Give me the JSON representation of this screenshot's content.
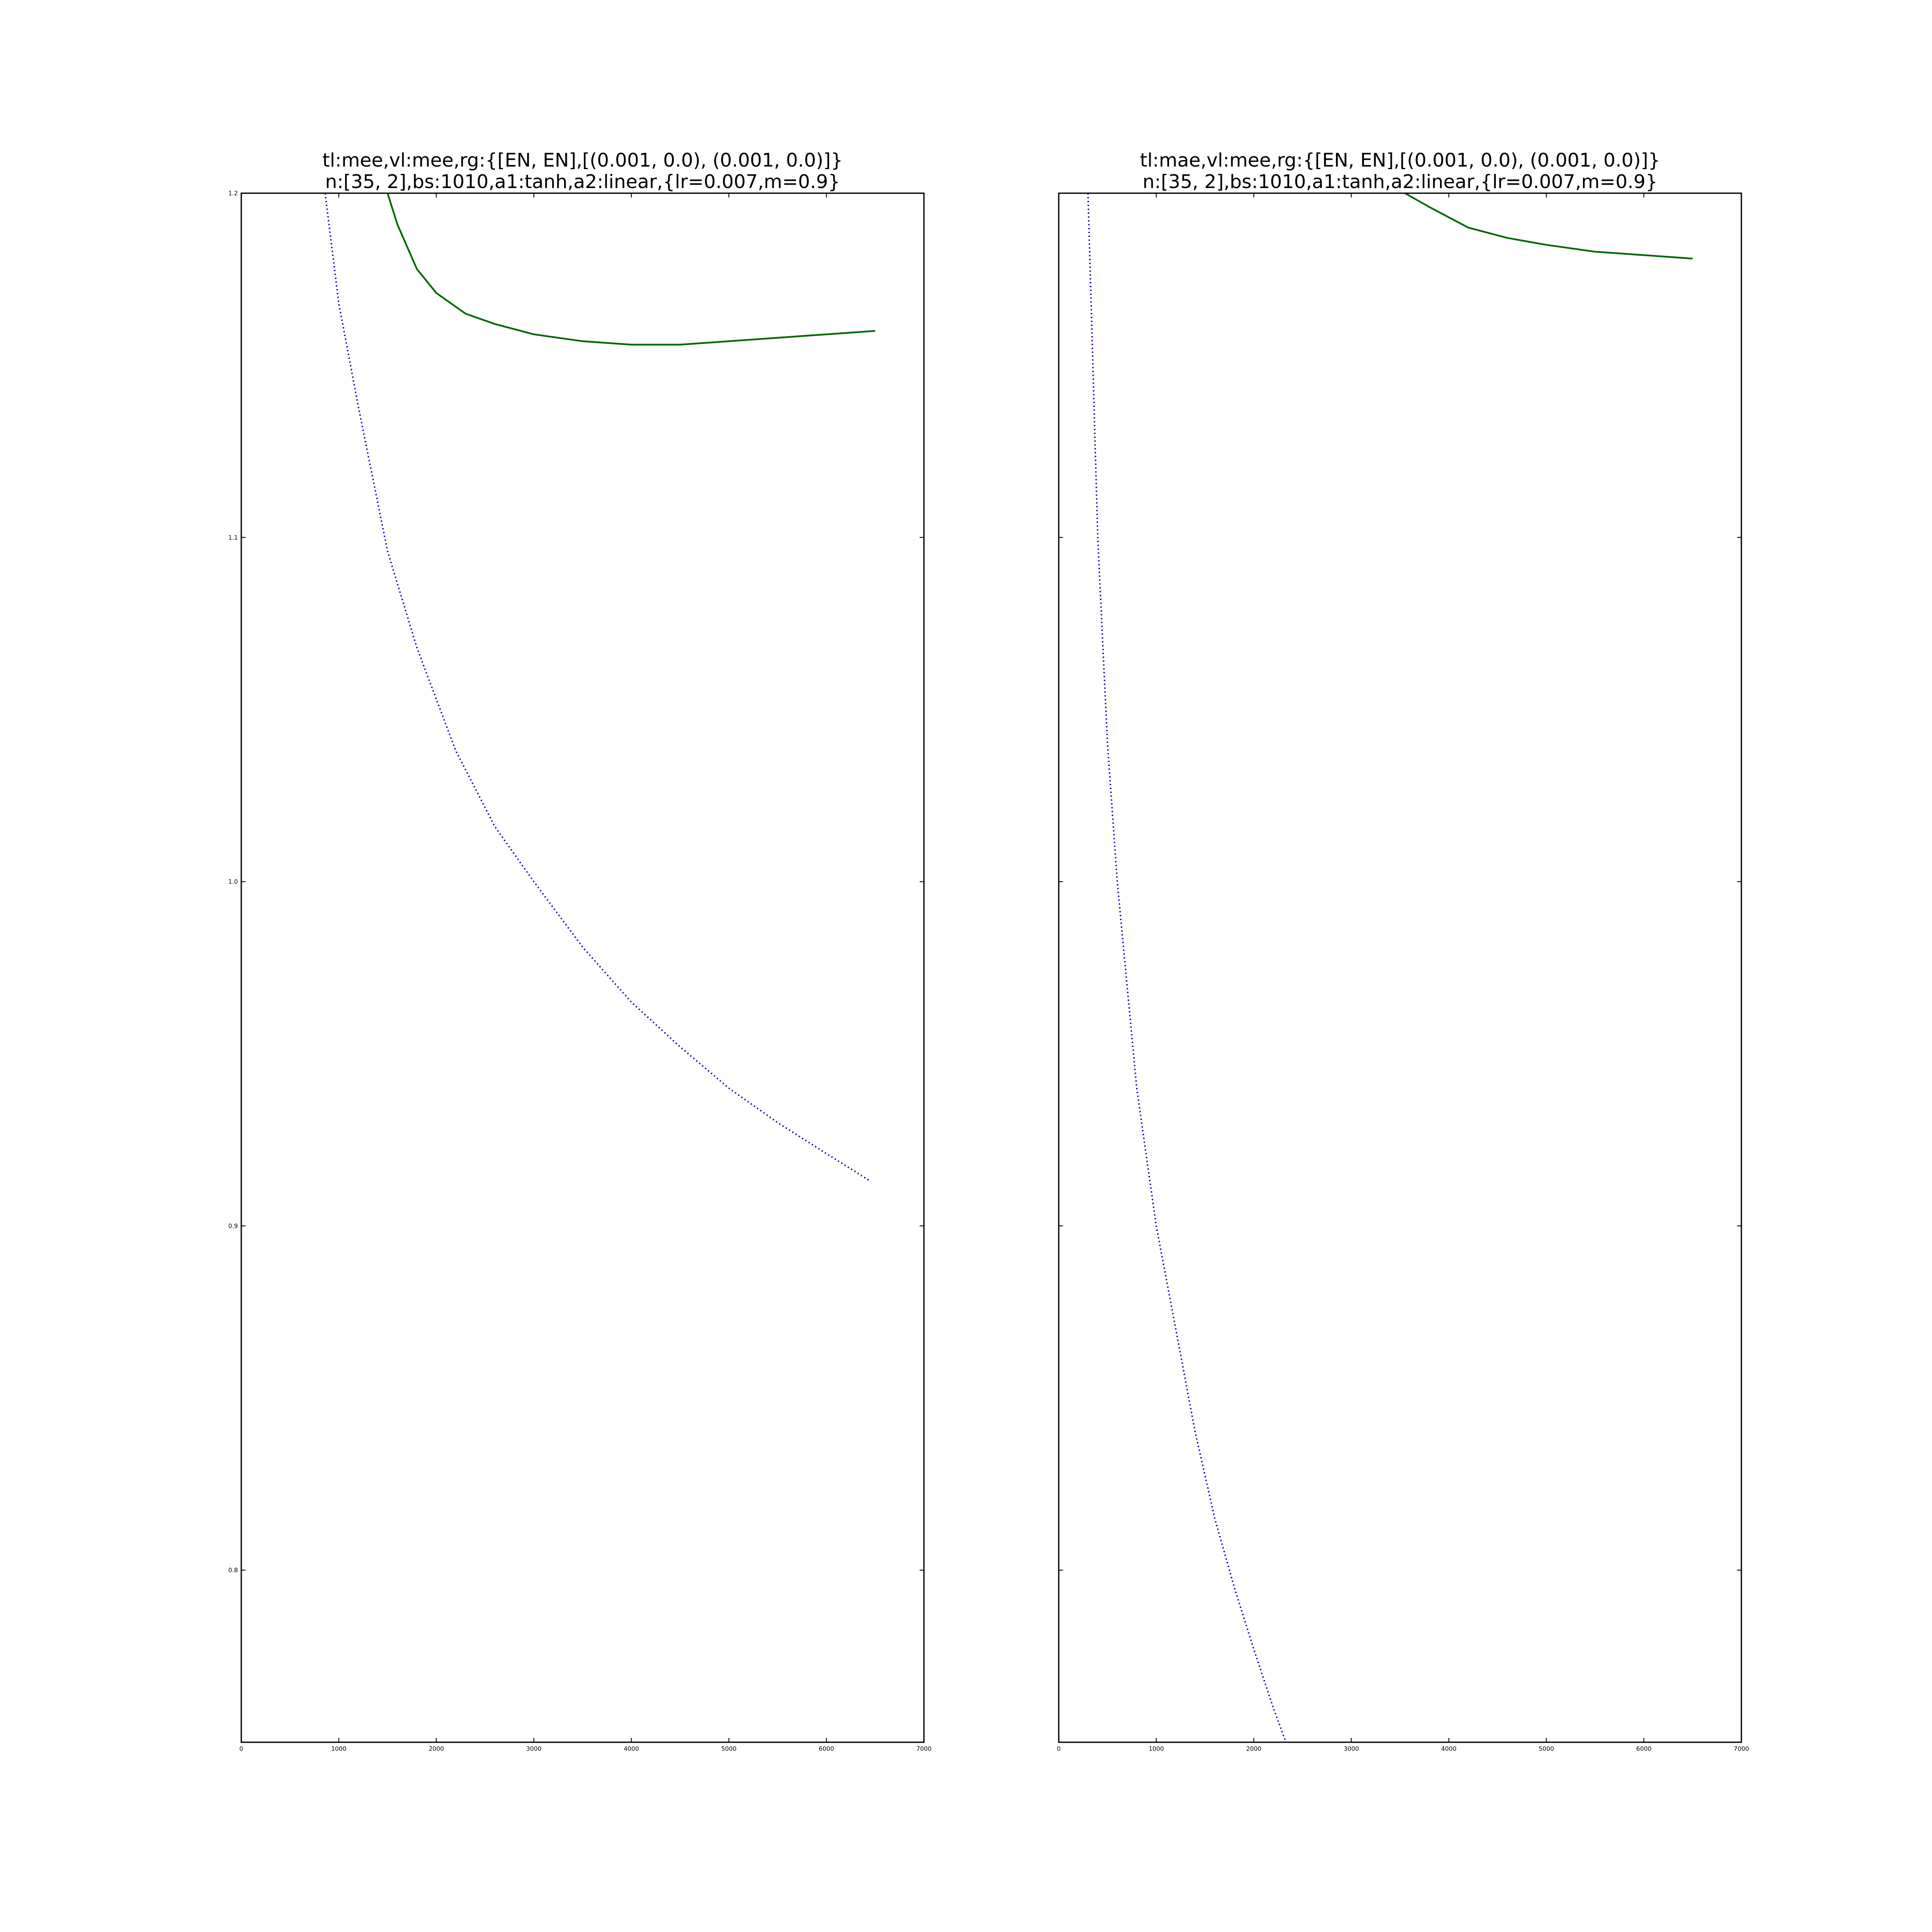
{
  "chart_data": [
    {
      "type": "line",
      "title_line1": "tl:mee,vl:mee,rg:{[EN, EN],[(0.001, 0.0), (0.001, 0.0)]}",
      "title_line2": "n:[35, 2],bs:1010,a1:tanh,a2:linear,{lr=0.007,m=0.9}",
      "xlabel": "",
      "ylabel": "",
      "xlim": [
        0,
        7000
      ],
      "ylim": [
        0.75,
        1.2
      ],
      "xticks": [
        "0",
        "1000",
        "2000",
        "3000",
        "4000",
        "5000",
        "6000",
        "7000"
      ],
      "yticks": [
        "0.8",
        "0.9",
        "1.0",
        "1.1",
        "1.2"
      ],
      "ytick_values": [
        0.8,
        0.9,
        1.0,
        1.1,
        1.2
      ],
      "grid": false,
      "series": [
        {
          "color": "#0000bb",
          "style": "dotted",
          "x": [
            860,
            1000,
            1200,
            1500,
            1800,
            2200,
            2600,
            3000,
            3500,
            4000,
            4500,
            5000,
            5500,
            6000,
            6450
          ],
          "y": [
            1.2,
            1.168,
            1.138,
            1.096,
            1.068,
            1.038,
            1.016,
            1.0,
            0.981,
            0.965,
            0.952,
            0.94,
            0.93,
            0.921,
            0.913
          ]
        },
        {
          "color": "#006400",
          "style": "solid",
          "x": [
            1500,
            1600,
            1800,
            2000,
            2300,
            2600,
            3000,
            3500,
            4000,
            4500,
            5000,
            5500,
            6000,
            6500
          ],
          "y": [
            1.2,
            1.191,
            1.178,
            1.171,
            1.165,
            1.162,
            1.159,
            1.157,
            1.156,
            1.156,
            1.157,
            1.158,
            1.159,
            1.16
          ]
        }
      ]
    },
    {
      "type": "line",
      "title_line1": "tl:mae,vl:mee,rg:{[EN, EN],[(0.001, 0.0), (0.001, 0.0)]}",
      "title_line2": "n:[35, 2],bs:1010,a1:tanh,a2:linear,{lr=0.007,m=0.9}",
      "xlabel": "",
      "ylabel": "",
      "xlim": [
        0,
        7000
      ],
      "ylim": [
        0.75,
        1.2
      ],
      "xticks": [
        "0",
        "1000",
        "2000",
        "3000",
        "4000",
        "5000",
        "6000",
        "7000"
      ],
      "yticks": [],
      "ytick_values": [
        0.8,
        0.9,
        1.0,
        1.1,
        1.2
      ],
      "grid": false,
      "series": [
        {
          "color": "#0000bb",
          "style": "dotted",
          "x": [
            300,
            350,
            400,
            450,
            500,
            600,
            700,
            800,
            1000,
            1200,
            1400,
            1600,
            1800,
            2000,
            2200,
            2330
          ],
          "y": [
            1.2,
            1.15,
            1.1,
            1.07,
            1.04,
            1.0,
            0.97,
            0.94,
            0.9,
            0.87,
            0.84,
            0.815,
            0.795,
            0.777,
            0.76,
            0.75
          ]
        },
        {
          "color": "#006400",
          "style": "solid",
          "x": [
            3550,
            3800,
            4200,
            4600,
            5000,
            5500,
            6000,
            6500
          ],
          "y": [
            1.2,
            1.196,
            1.19,
            1.187,
            1.185,
            1.183,
            1.182,
            1.181
          ]
        }
      ]
    }
  ]
}
